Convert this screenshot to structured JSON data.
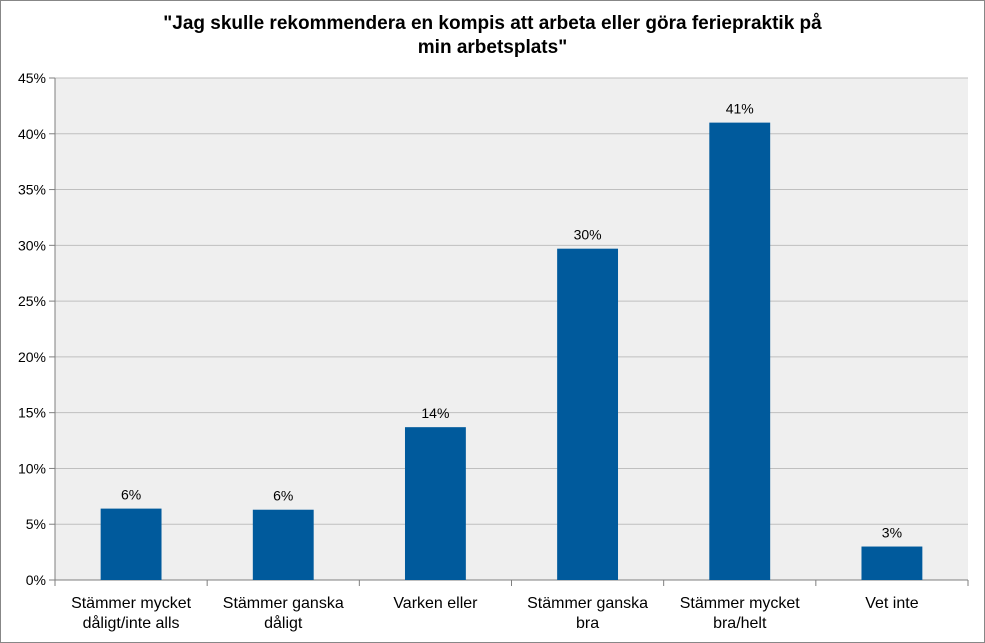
{
  "chart_data": {
    "type": "bar",
    "title_lines": [
      "\"Jag skulle rekommendera  en kompis att arbeta eller göra feriepraktik på",
      "min arbetsplats\""
    ],
    "categories": [
      [
        "Stämmer mycket",
        "dåligt/inte alls"
      ],
      [
        "Stämmer ganska",
        "dåligt"
      ],
      [
        "Varken eller"
      ],
      [
        "Stämmer ganska",
        "bra"
      ],
      [
        "Stämmer mycket",
        "bra/helt"
      ],
      [
        "Vet inte"
      ]
    ],
    "values": [
      6.4,
      6.3,
      13.7,
      29.7,
      41.0,
      3.0
    ],
    "data_labels": [
      "6%",
      "6%",
      "14%",
      "30%",
      "41%",
      "3%"
    ],
    "y_ticks": [
      0,
      5,
      10,
      15,
      20,
      25,
      30,
      35,
      40,
      45
    ],
    "y_tick_labels": [
      "0%",
      "5%",
      "10%",
      "15%",
      "20%",
      "25%",
      "30%",
      "35%",
      "40%",
      "45%"
    ],
    "ylim": [
      0,
      45
    ],
    "grid": true,
    "legend": "none",
    "colors": {
      "bar": "#005A9C",
      "plot_background": "#EFEFEF",
      "gridline": "#BFBFBF",
      "axis": "#7F7F7F"
    }
  }
}
